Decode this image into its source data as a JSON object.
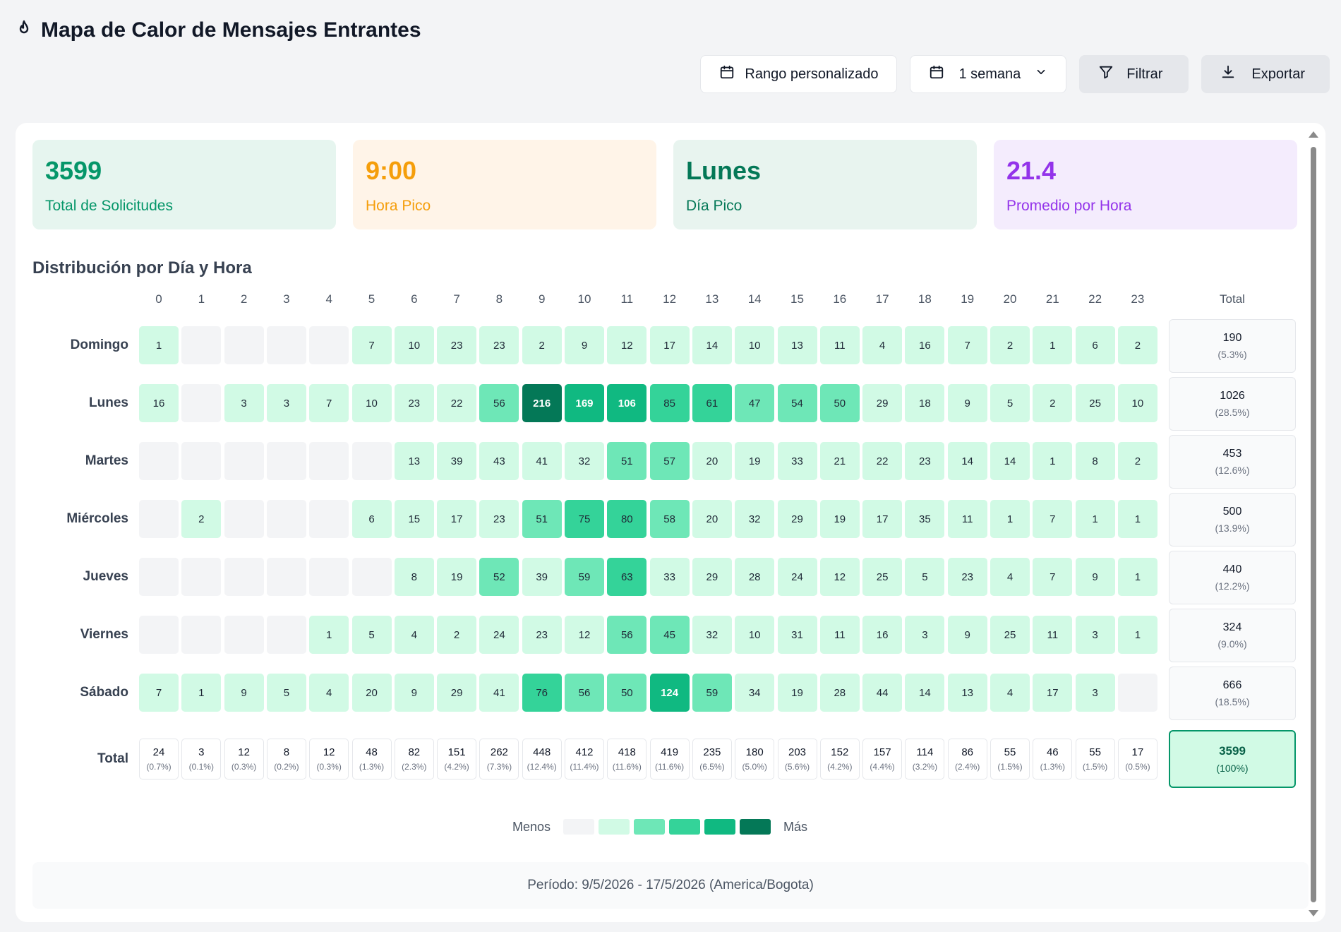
{
  "header": {
    "title": "Mapa de Calor de Mensajes Entrantes"
  },
  "toolbar": {
    "custom_range_label": "Rango personalizado",
    "period_label": "1 semana",
    "filter_label": "Filtrar",
    "export_label": "Exportar"
  },
  "stats": [
    {
      "value": "3599",
      "label": "Total de Solicitudes",
      "bg": "#e6f5ef",
      "color": "#059669"
    },
    {
      "value": "9:00",
      "label": "Hora Pico",
      "bg": "#fff4e8",
      "color": "#f59e0b"
    },
    {
      "value": "Lunes",
      "label": "Día Pico",
      "bg": "#e8f4ef",
      "color": "#047857"
    },
    {
      "value": "21.4",
      "label": "Promedio por Hora",
      "bg": "#f4ecfd",
      "color": "#9333ea"
    }
  ],
  "section_title": "Distribución por Día y Hora",
  "hours": [
    "0",
    "1",
    "2",
    "3",
    "4",
    "5",
    "6",
    "7",
    "8",
    "9",
    "10",
    "11",
    "12",
    "13",
    "14",
    "15",
    "16",
    "17",
    "18",
    "19",
    "20",
    "21",
    "22",
    "23"
  ],
  "total_header": "Total",
  "total_row_label": "Total",
  "days": [
    "Domingo",
    "Lunes",
    "Martes",
    "Miércoles",
    "Jueves",
    "Viernes",
    "Sábado"
  ],
  "matrix": [
    [
      1,
      0,
      0,
      0,
      0,
      7,
      10,
      23,
      23,
      2,
      9,
      12,
      17,
      14,
      10,
      13,
      11,
      4,
      16,
      7,
      2,
      1,
      6,
      2
    ],
    [
      16,
      0,
      3,
      3,
      7,
      10,
      23,
      22,
      56,
      216,
      169,
      106,
      85,
      61,
      47,
      54,
      50,
      29,
      18,
      9,
      5,
      2,
      25,
      10
    ],
    [
      0,
      0,
      0,
      0,
      0,
      0,
      13,
      39,
      43,
      41,
      32,
      51,
      57,
      20,
      19,
      33,
      21,
      22,
      23,
      14,
      14,
      1,
      8,
      2
    ],
    [
      0,
      2,
      0,
      0,
      0,
      6,
      15,
      17,
      23,
      51,
      75,
      80,
      58,
      20,
      32,
      29,
      19,
      17,
      35,
      11,
      1,
      7,
      1,
      1
    ],
    [
      0,
      0,
      0,
      0,
      0,
      0,
      8,
      19,
      52,
      39,
      59,
      63,
      33,
      29,
      28,
      24,
      12,
      25,
      5,
      23,
      4,
      7,
      9,
      1
    ],
    [
      0,
      0,
      0,
      0,
      1,
      5,
      4,
      2,
      24,
      23,
      12,
      56,
      45,
      32,
      10,
      31,
      11,
      16,
      3,
      9,
      25,
      11,
      3,
      1
    ],
    [
      7,
      1,
      9,
      5,
      4,
      20,
      9,
      29,
      41,
      76,
      56,
      50,
      124,
      59,
      34,
      19,
      28,
      44,
      14,
      13,
      4,
      17,
      3,
      0
    ]
  ],
  "row_totals": [
    {
      "n": "190",
      "p": "(5.3%)"
    },
    {
      "n": "1026",
      "p": "(28.5%)"
    },
    {
      "n": "453",
      "p": "(12.6%)"
    },
    {
      "n": "500",
      "p": "(13.9%)"
    },
    {
      "n": "440",
      "p": "(12.2%)"
    },
    {
      "n": "324",
      "p": "(9.0%)"
    },
    {
      "n": "666",
      "p": "(18.5%)"
    }
  ],
  "col_totals": [
    {
      "n": "24",
      "p": "(0.7%)"
    },
    {
      "n": "3",
      "p": "(0.1%)"
    },
    {
      "n": "12",
      "p": "(0.3%)"
    },
    {
      "n": "8",
      "p": "(0.2%)"
    },
    {
      "n": "12",
      "p": "(0.3%)"
    },
    {
      "n": "48",
      "p": "(1.3%)"
    },
    {
      "n": "82",
      "p": "(2.3%)"
    },
    {
      "n": "151",
      "p": "(4.2%)"
    },
    {
      "n": "262",
      "p": "(7.3%)"
    },
    {
      "n": "448",
      "p": "(12.4%)"
    },
    {
      "n": "412",
      "p": "(11.4%)"
    },
    {
      "n": "418",
      "p": "(11.6%)"
    },
    {
      "n": "419",
      "p": "(11.6%)"
    },
    {
      "n": "235",
      "p": "(6.5%)"
    },
    {
      "n": "180",
      "p": "(5.0%)"
    },
    {
      "n": "203",
      "p": "(5.6%)"
    },
    {
      "n": "152",
      "p": "(4.2%)"
    },
    {
      "n": "157",
      "p": "(4.4%)"
    },
    {
      "n": "114",
      "p": "(3.2%)"
    },
    {
      "n": "86",
      "p": "(2.4%)"
    },
    {
      "n": "55",
      "p": "(1.5%)"
    },
    {
      "n": "46",
      "p": "(1.3%)"
    },
    {
      "n": "55",
      "p": "(1.5%)"
    },
    {
      "n": "17",
      "p": "(0.5%)"
    }
  ],
  "grand_total": {
    "n": "3599",
    "p": "(100%)"
  },
  "legend": {
    "less": "Menos",
    "more": "Más",
    "colors": [
      "#f3f4f6",
      "#d1fae5",
      "#6ee7b7",
      "#34d399",
      "#10b981",
      "#047857"
    ]
  },
  "footer": {
    "period": "Período: 9/5/2026 - 17/5/2026 (America/Bogota)"
  }
}
